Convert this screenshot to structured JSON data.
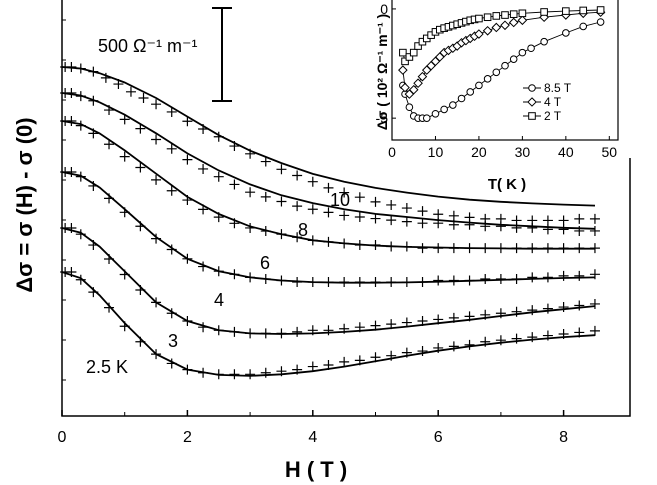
{
  "chart_data": [
    {
      "type": "scatter",
      "panel": "main",
      "xlabel": "H ( T )",
      "ylabel": "Δσ = σ (H) - σ (0)",
      "xlim": [
        0,
        8.6
      ],
      "xticks": [
        0,
        2,
        4,
        6,
        8
      ],
      "y_units_note": "curves vertically offset; arbitrary y origin",
      "scale_bar_label": "500 Ω⁻¹ m⁻¹",
      "curve_labels": [
        "10",
        "8",
        "6",
        "4",
        "3",
        "2.5 K"
      ],
      "series": [
        {
          "name": "10",
          "data_x": [
            0.05,
            0.15,
            0.3,
            0.5,
            0.7,
            0.9,
            1.1,
            1.3,
            1.5,
            1.75,
            2.0,
            2.25,
            2.5,
            2.75,
            3.0,
            3.25,
            3.5,
            3.75,
            4.0,
            4.25,
            4.5,
            4.75,
            5.0,
            5.25,
            5.5,
            5.75,
            6.0,
            6.25,
            6.5,
            6.75,
            7.0,
            7.25,
            7.5,
            7.75,
            8.0,
            8.25,
            8.5
          ],
          "data_y": [
            0,
            0,
            -5,
            -15,
            -35,
            -55,
            -80,
            -100,
            -120,
            -145,
            -175,
            -200,
            -225,
            -255,
            -280,
            -305,
            -330,
            -350,
            -370,
            -390,
            -405,
            -420,
            -435,
            -445,
            -455,
            -465,
            -475,
            -480,
            -485,
            -490,
            -490,
            -495,
            -495,
            -495,
            -495,
            -490,
            -490
          ],
          "fit_x": [
            0,
            0.3,
            0.6,
            1.0,
            1.5,
            2.0,
            2.5,
            3.0,
            3.5,
            4.0,
            4.5,
            5.0,
            5.5,
            6.0,
            6.5,
            7.0,
            7.5,
            8.0,
            8.5
          ],
          "fit_y": [
            0,
            -5,
            -20,
            -50,
            -100,
            -160,
            -220,
            -270,
            -310,
            -345,
            -370,
            -390,
            -405,
            -418,
            -428,
            -435,
            -440,
            -444,
            -447
          ]
        },
        {
          "name": "8",
          "data_x": [
            0.05,
            0.15,
            0.3,
            0.5,
            0.75,
            1.0,
            1.25,
            1.5,
            1.75,
            2.0,
            2.25,
            2.5,
            2.75,
            3.0,
            3.25,
            3.5,
            3.75,
            4.0,
            4.25,
            4.5,
            4.75,
            5.0,
            5.25,
            5.5,
            5.75,
            6.0,
            6.25,
            6.5,
            6.75,
            7.0,
            7.25,
            7.5,
            7.75,
            8.0,
            8.25,
            8.5
          ],
          "data_y": [
            0,
            0,
            -10,
            -25,
            -55,
            -85,
            -115,
            -150,
            -180,
            -215,
            -245,
            -270,
            -295,
            -320,
            -335,
            -350,
            -365,
            -375,
            -385,
            -395,
            -400,
            -405,
            -410,
            -415,
            -420,
            -420,
            -425,
            -425,
            -430,
            -430,
            -435,
            -435,
            -440,
            -440,
            -445,
            -445
          ],
          "fit_x": [
            0,
            0.3,
            0.6,
            1.0,
            1.5,
            2.0,
            2.5,
            3.0,
            3.5,
            4.0,
            4.5,
            5.0,
            5.5,
            6.0,
            6.5,
            7.0,
            7.5,
            8.0,
            8.5
          ],
          "fit_y": [
            0,
            -8,
            -30,
            -70,
            -130,
            -195,
            -250,
            -295,
            -330,
            -355,
            -375,
            -390,
            -400,
            -410,
            -418,
            -425,
            -430,
            -435,
            -438
          ]
        },
        {
          "name": "6",
          "data_x": [
            0.05,
            0.15,
            0.3,
            0.5,
            0.75,
            1.0,
            1.25,
            1.5,
            1.75,
            2.0,
            2.25,
            2.5,
            2.75,
            3.0,
            3.25,
            3.5,
            3.75,
            4.0,
            4.25,
            4.5,
            4.75,
            5.0,
            5.25,
            5.5,
            5.75,
            6.0,
            6.25,
            6.5,
            6.75,
            7.0,
            7.25,
            7.5,
            7.75,
            8.0,
            8.25,
            8.5
          ],
          "data_y": [
            0,
            0,
            -15,
            -40,
            -75,
            -115,
            -150,
            -190,
            -225,
            -255,
            -285,
            -310,
            -330,
            -345,
            -355,
            -365,
            -375,
            -385,
            -390,
            -395,
            -400,
            -400,
            -405,
            -405,
            -410,
            -410,
            -410,
            -410,
            -410,
            -410,
            -410,
            -410,
            -410,
            -410,
            -410,
            -410
          ],
          "fit_x": [
            0,
            0.3,
            0.6,
            1.0,
            1.5,
            2.0,
            2.5,
            3.0,
            3.5,
            4.0,
            4.5,
            5.0,
            5.5,
            6.0,
            6.5,
            7.0,
            7.5,
            8.0,
            8.5
          ],
          "fit_y": [
            0,
            -10,
            -40,
            -95,
            -170,
            -245,
            -300,
            -340,
            -365,
            -385,
            -395,
            -402,
            -406,
            -408,
            -410,
            -411,
            -412,
            -412,
            -412
          ]
        },
        {
          "name": "4",
          "data_x": [
            0.05,
            0.15,
            0.3,
            0.5,
            0.75,
            1.0,
            1.25,
            1.5,
            1.75,
            2.0,
            2.25,
            2.5,
            2.75,
            3.0,
            3.25,
            3.5,
            3.75,
            4.0,
            4.25,
            4.5,
            4.75,
            5.0,
            5.25,
            5.5,
            5.75,
            6.0,
            6.25,
            6.5,
            6.75,
            7.0,
            7.25,
            7.5,
            7.75,
            8.0,
            8.25,
            8.5
          ],
          "data_y": [
            0,
            0,
            -15,
            -45,
            -85,
            -130,
            -175,
            -215,
            -250,
            -280,
            -305,
            -320,
            -330,
            -340,
            -345,
            -350,
            -355,
            -355,
            -355,
            -355,
            -355,
            -355,
            -355,
            -355,
            -355,
            -350,
            -350,
            -350,
            -345,
            -345,
            -345,
            -340,
            -340,
            -335,
            -335,
            -330
          ],
          "fit_x": [
            0,
            0.3,
            0.6,
            1.0,
            1.5,
            2.0,
            2.5,
            3.0,
            3.5,
            4.0,
            4.5,
            5.0,
            5.5,
            6.0,
            6.5,
            7.0,
            7.5,
            8.0,
            8.5
          ],
          "fit_y": [
            0,
            -12,
            -50,
            -120,
            -210,
            -280,
            -320,
            -340,
            -350,
            -355,
            -357,
            -357,
            -356,
            -354,
            -351,
            -348,
            -345,
            -342,
            -340
          ]
        },
        {
          "name": "3",
          "data_x": [
            0.05,
            0.15,
            0.3,
            0.5,
            0.75,
            1.0,
            1.25,
            1.5,
            1.75,
            2.0,
            2.25,
            2.5,
            2.75,
            3.0,
            3.25,
            3.5,
            3.75,
            4.0,
            4.25,
            4.5,
            4.75,
            5.0,
            5.25,
            5.5,
            5.75,
            6.0,
            6.25,
            6.5,
            6.75,
            7.0,
            7.25,
            7.5,
            7.75,
            8.0,
            8.25,
            8.5
          ],
          "data_y": [
            0,
            0,
            -20,
            -55,
            -100,
            -150,
            -200,
            -240,
            -275,
            -300,
            -320,
            -330,
            -335,
            -340,
            -340,
            -340,
            -335,
            -330,
            -330,
            -325,
            -320,
            -315,
            -310,
            -305,
            -300,
            -295,
            -290,
            -285,
            -280,
            -275,
            -270,
            -265,
            -260,
            -255,
            -250,
            -245
          ],
          "fit_x": [
            0,
            0.3,
            0.6,
            1.0,
            1.5,
            2.0,
            2.5,
            3.0,
            3.5,
            4.0,
            4.5,
            5.0,
            5.5,
            6.0,
            6.5,
            7.0,
            7.5,
            8.0,
            8.5
          ],
          "fit_y": [
            0,
            -15,
            -60,
            -140,
            -240,
            -300,
            -330,
            -340,
            -342,
            -340,
            -335,
            -328,
            -318,
            -307,
            -296,
            -284,
            -272,
            -262,
            -252
          ]
        },
        {
          "name": "2.5 K",
          "data_x": [
            0.05,
            0.15,
            0.3,
            0.5,
            0.75,
            1.0,
            1.25,
            1.5,
            1.75,
            2.0,
            2.25,
            2.5,
            2.75,
            3.0,
            3.25,
            3.5,
            3.75,
            4.0,
            4.25,
            4.5,
            4.75,
            5.0,
            5.25,
            5.5,
            5.75,
            6.0,
            6.25,
            6.5,
            6.75,
            7.0,
            7.25,
            7.5,
            7.75,
            8.0,
            8.25,
            8.5
          ],
          "data_y": [
            0,
            0,
            -25,
            -65,
            -115,
            -175,
            -225,
            -265,
            -295,
            -315,
            -325,
            -330,
            -330,
            -330,
            -325,
            -320,
            -315,
            -305,
            -300,
            -290,
            -285,
            -275,
            -270,
            -260,
            -255,
            -245,
            -240,
            -235,
            -225,
            -220,
            -215,
            -210,
            -205,
            -200,
            -195,
            -190
          ],
          "fit_x": [
            0,
            0.3,
            0.6,
            1.0,
            1.5,
            2.0,
            2.5,
            3.0,
            3.5,
            4.0,
            4.5,
            5.0,
            5.5,
            6.0,
            6.5,
            7.0,
            7.5,
            8.0,
            8.5
          ],
          "fit_y": [
            0,
            -20,
            -75,
            -165,
            -265,
            -315,
            -332,
            -335,
            -330,
            -320,
            -305,
            -288,
            -270,
            -254,
            -240,
            -228,
            -218,
            -210,
            -204
          ]
        }
      ]
    },
    {
      "type": "line",
      "panel": "inset",
      "xlabel": "T( K )",
      "ylabel": "Δσ ( 10² Ω⁻¹ m⁻¹ )",
      "xlim": [
        0,
        52
      ],
      "ylim": [
        -6,
        0.5
      ],
      "xticks": [
        0,
        10,
        20,
        30,
        40,
        50
      ],
      "yticks": [
        0,
        -5
      ],
      "legend": "right",
      "series": [
        {
          "name": "8.5 T",
          "marker": "circle",
          "x": [
            2.5,
            3,
            4,
            5,
            6,
            7,
            8,
            10,
            12,
            14,
            16,
            18,
            20,
            22,
            24,
            26,
            28,
            30,
            32,
            35,
            40,
            44,
            48
          ],
          "y": [
            -3.5,
            -3.9,
            -4.5,
            -4.9,
            -5.0,
            -5.0,
            -5.0,
            -4.8,
            -4.6,
            -4.4,
            -4.1,
            -3.8,
            -3.5,
            -3.2,
            -2.9,
            -2.6,
            -2.3,
            -2.0,
            -1.8,
            -1.5,
            -1.1,
            -0.8,
            -0.6
          ]
        },
        {
          "name": "4 T",
          "marker": "diamond",
          "x": [
            2.5,
            3,
            4,
            5,
            6,
            7,
            8,
            9,
            10,
            11,
            12,
            13,
            14,
            15,
            16,
            17,
            18,
            19,
            20,
            22,
            24,
            26,
            28,
            30,
            35,
            40,
            44,
            48
          ],
          "y": [
            -2.8,
            -3.6,
            -3.9,
            -3.7,
            -3.4,
            -3.1,
            -2.8,
            -2.6,
            -2.4,
            -2.2,
            -2.0,
            -1.9,
            -1.8,
            -1.7,
            -1.55,
            -1.45,
            -1.35,
            -1.25,
            -1.15,
            -1.0,
            -0.85,
            -0.75,
            -0.62,
            -0.52,
            -0.38,
            -0.28,
            -0.2,
            -0.15
          ]
        },
        {
          "name": "2 T",
          "marker": "square",
          "x": [
            2.5,
            3,
            4,
            5,
            6,
            7,
            8,
            9,
            10,
            11,
            12,
            13,
            14,
            15,
            16,
            17,
            18,
            19,
            20,
            22,
            24,
            26,
            28,
            30,
            35,
            40,
            44,
            48
          ],
          "y": [
            -2.0,
            -2.4,
            -2.2,
            -2.0,
            -1.7,
            -1.5,
            -1.35,
            -1.2,
            -1.05,
            -0.95,
            -0.88,
            -0.82,
            -0.76,
            -0.7,
            -0.64,
            -0.58,
            -0.52,
            -0.48,
            -0.44,
            -0.38,
            -0.32,
            -0.28,
            -0.24,
            -0.2,
            -0.14,
            -0.1,
            -0.07,
            -0.05
          ]
        }
      ]
    }
  ]
}
